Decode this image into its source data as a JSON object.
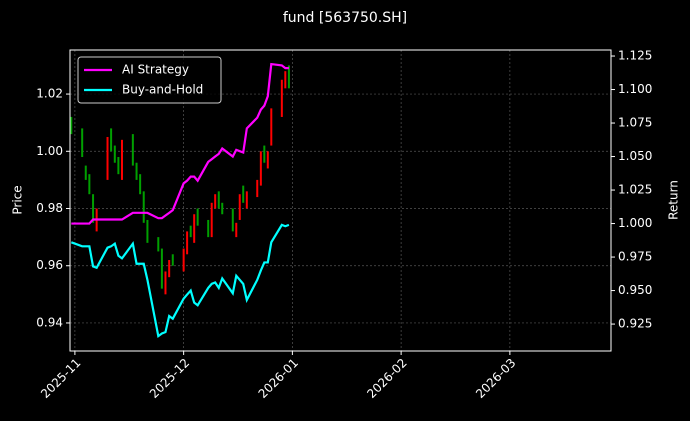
{
  "chart_data": {
    "type": "candlestick",
    "title": "fund [563750.SH]",
    "ylabel": "Price",
    "y2label": "Return",
    "x": [
      -0.033,
      0.067,
      0.1,
      0.133,
      0.167,
      0.2,
      0.3,
      0.333,
      0.367,
      0.4,
      0.433,
      0.533,
      0.567,
      0.6,
      0.633,
      0.667,
      0.767,
      0.8,
      0.833,
      0.867,
      0.9,
      1.0,
      1.032,
      1.065,
      1.097,
      1.129,
      1.226,
      1.258,
      1.29,
      1.323,
      1.355,
      1.452,
      1.484,
      1.516,
      1.548,
      1.581,
      1.677,
      1.71,
      1.742,
      1.774,
      1.806,
      1.903,
      1.935,
      1.968
    ],
    "open": [
      1.012,
      1.008,
      0.995,
      0.992,
      0.985,
      0.972,
      0.99,
      1.008,
      1.002,
      0.998,
      0.99,
      1.006,
      0.996,
      0.992,
      0.986,
      0.976,
      0.97,
      0.966,
      0.95,
      0.956,
      0.964,
      0.958,
      0.964,
      0.974,
      0.968,
      0.98,
      0.976,
      0.97,
      0.98,
      0.986,
      0.982,
      0.98,
      0.97,
      0.976,
      0.988,
      0.98,
      0.984,
      0.988,
      1.002,
      0.994,
      1.002,
      1.012,
      1.022,
      1.03
    ],
    "close": [
      1.006,
      0.998,
      0.99,
      0.985,
      0.975,
      0.98,
      1.005,
      1.0,
      0.996,
      0.992,
      1.004,
      0.995,
      0.99,
      0.985,
      0.975,
      0.968,
      0.965,
      0.952,
      0.958,
      0.962,
      0.96,
      0.966,
      0.972,
      0.97,
      0.978,
      0.974,
      0.97,
      0.982,
      0.985,
      0.98,
      0.978,
      0.972,
      0.975,
      0.985,
      0.982,
      0.986,
      0.99,
      1.0,
      0.996,
      1.0,
      1.015,
      1.025,
      1.028,
      1.022
    ],
    "up_color": "#ff0000",
    "down_color": "#00a000",
    "series": [
      {
        "name": "AI Strategy",
        "color": "#ff00ff",
        "axis": "y2",
        "values": [
          1.0,
          1.0,
          1.0,
          1.0,
          1.003,
          1.003,
          1.003,
          1.003,
          1.003,
          1.003,
          1.003,
          1.008,
          1.008,
          1.008,
          1.008,
          1.008,
          1.004,
          1.004,
          1.006,
          1.008,
          1.01,
          1.03,
          1.032,
          1.035,
          1.035,
          1.032,
          1.046,
          1.048,
          1.05,
          1.052,
          1.056,
          1.05,
          1.055,
          1.054,
          1.053,
          1.071,
          1.079,
          1.085,
          1.088,
          1.095,
          1.119,
          1.118,
          1.116,
          1.116
        ]
      },
      {
        "name": "Buy-and-Hold",
        "color": "#00ffff",
        "axis": "y2",
        "values": [
          0.986,
          0.983,
          0.983,
          0.983,
          0.968,
          0.967,
          0.982,
          0.983,
          0.985,
          0.976,
          0.974,
          0.985,
          0.97,
          0.97,
          0.97,
          0.958,
          0.916,
          0.918,
          0.919,
          0.931,
          0.929,
          0.944,
          0.947,
          0.95,
          0.941,
          0.939,
          0.952,
          0.955,
          0.956,
          0.952,
          0.959,
          0.948,
          0.961,
          0.958,
          0.955,
          0.943,
          0.958,
          0.965,
          0.971,
          0.971,
          0.986,
          0.999,
          0.998,
          0.999
        ]
      }
    ],
    "xlim": [
      -0.045,
      4.93
    ],
    "xticks": [
      {
        "value": 0,
        "label": "2025-11"
      },
      {
        "value": 1,
        "label": "2025-12"
      },
      {
        "value": 2,
        "label": "2026-01"
      },
      {
        "value": 3,
        "label": "2026-02"
      },
      {
        "value": 4,
        "label": "2026-03"
      }
    ],
    "ylim": [
      0.9302,
      1.0354
    ],
    "yticks": [
      0.94,
      0.96,
      0.98,
      {
        "value": 1.0,
        "label": "1.00"
      },
      1.02
    ],
    "y2lim": [
      0.9049,
      1.1295
    ],
    "y2ticks": [
      0.925,
      {
        "value": 0.95,
        "label": "0.950"
      },
      0.975,
      {
        "value": 1.0,
        "label": "1.000"
      },
      1.025,
      {
        "value": 1.05,
        "label": "1.050"
      },
      1.075,
      {
        "value": 1.1,
        "label": "1.100"
      },
      1.125
    ],
    "grid": true,
    "legend": "upper left"
  }
}
